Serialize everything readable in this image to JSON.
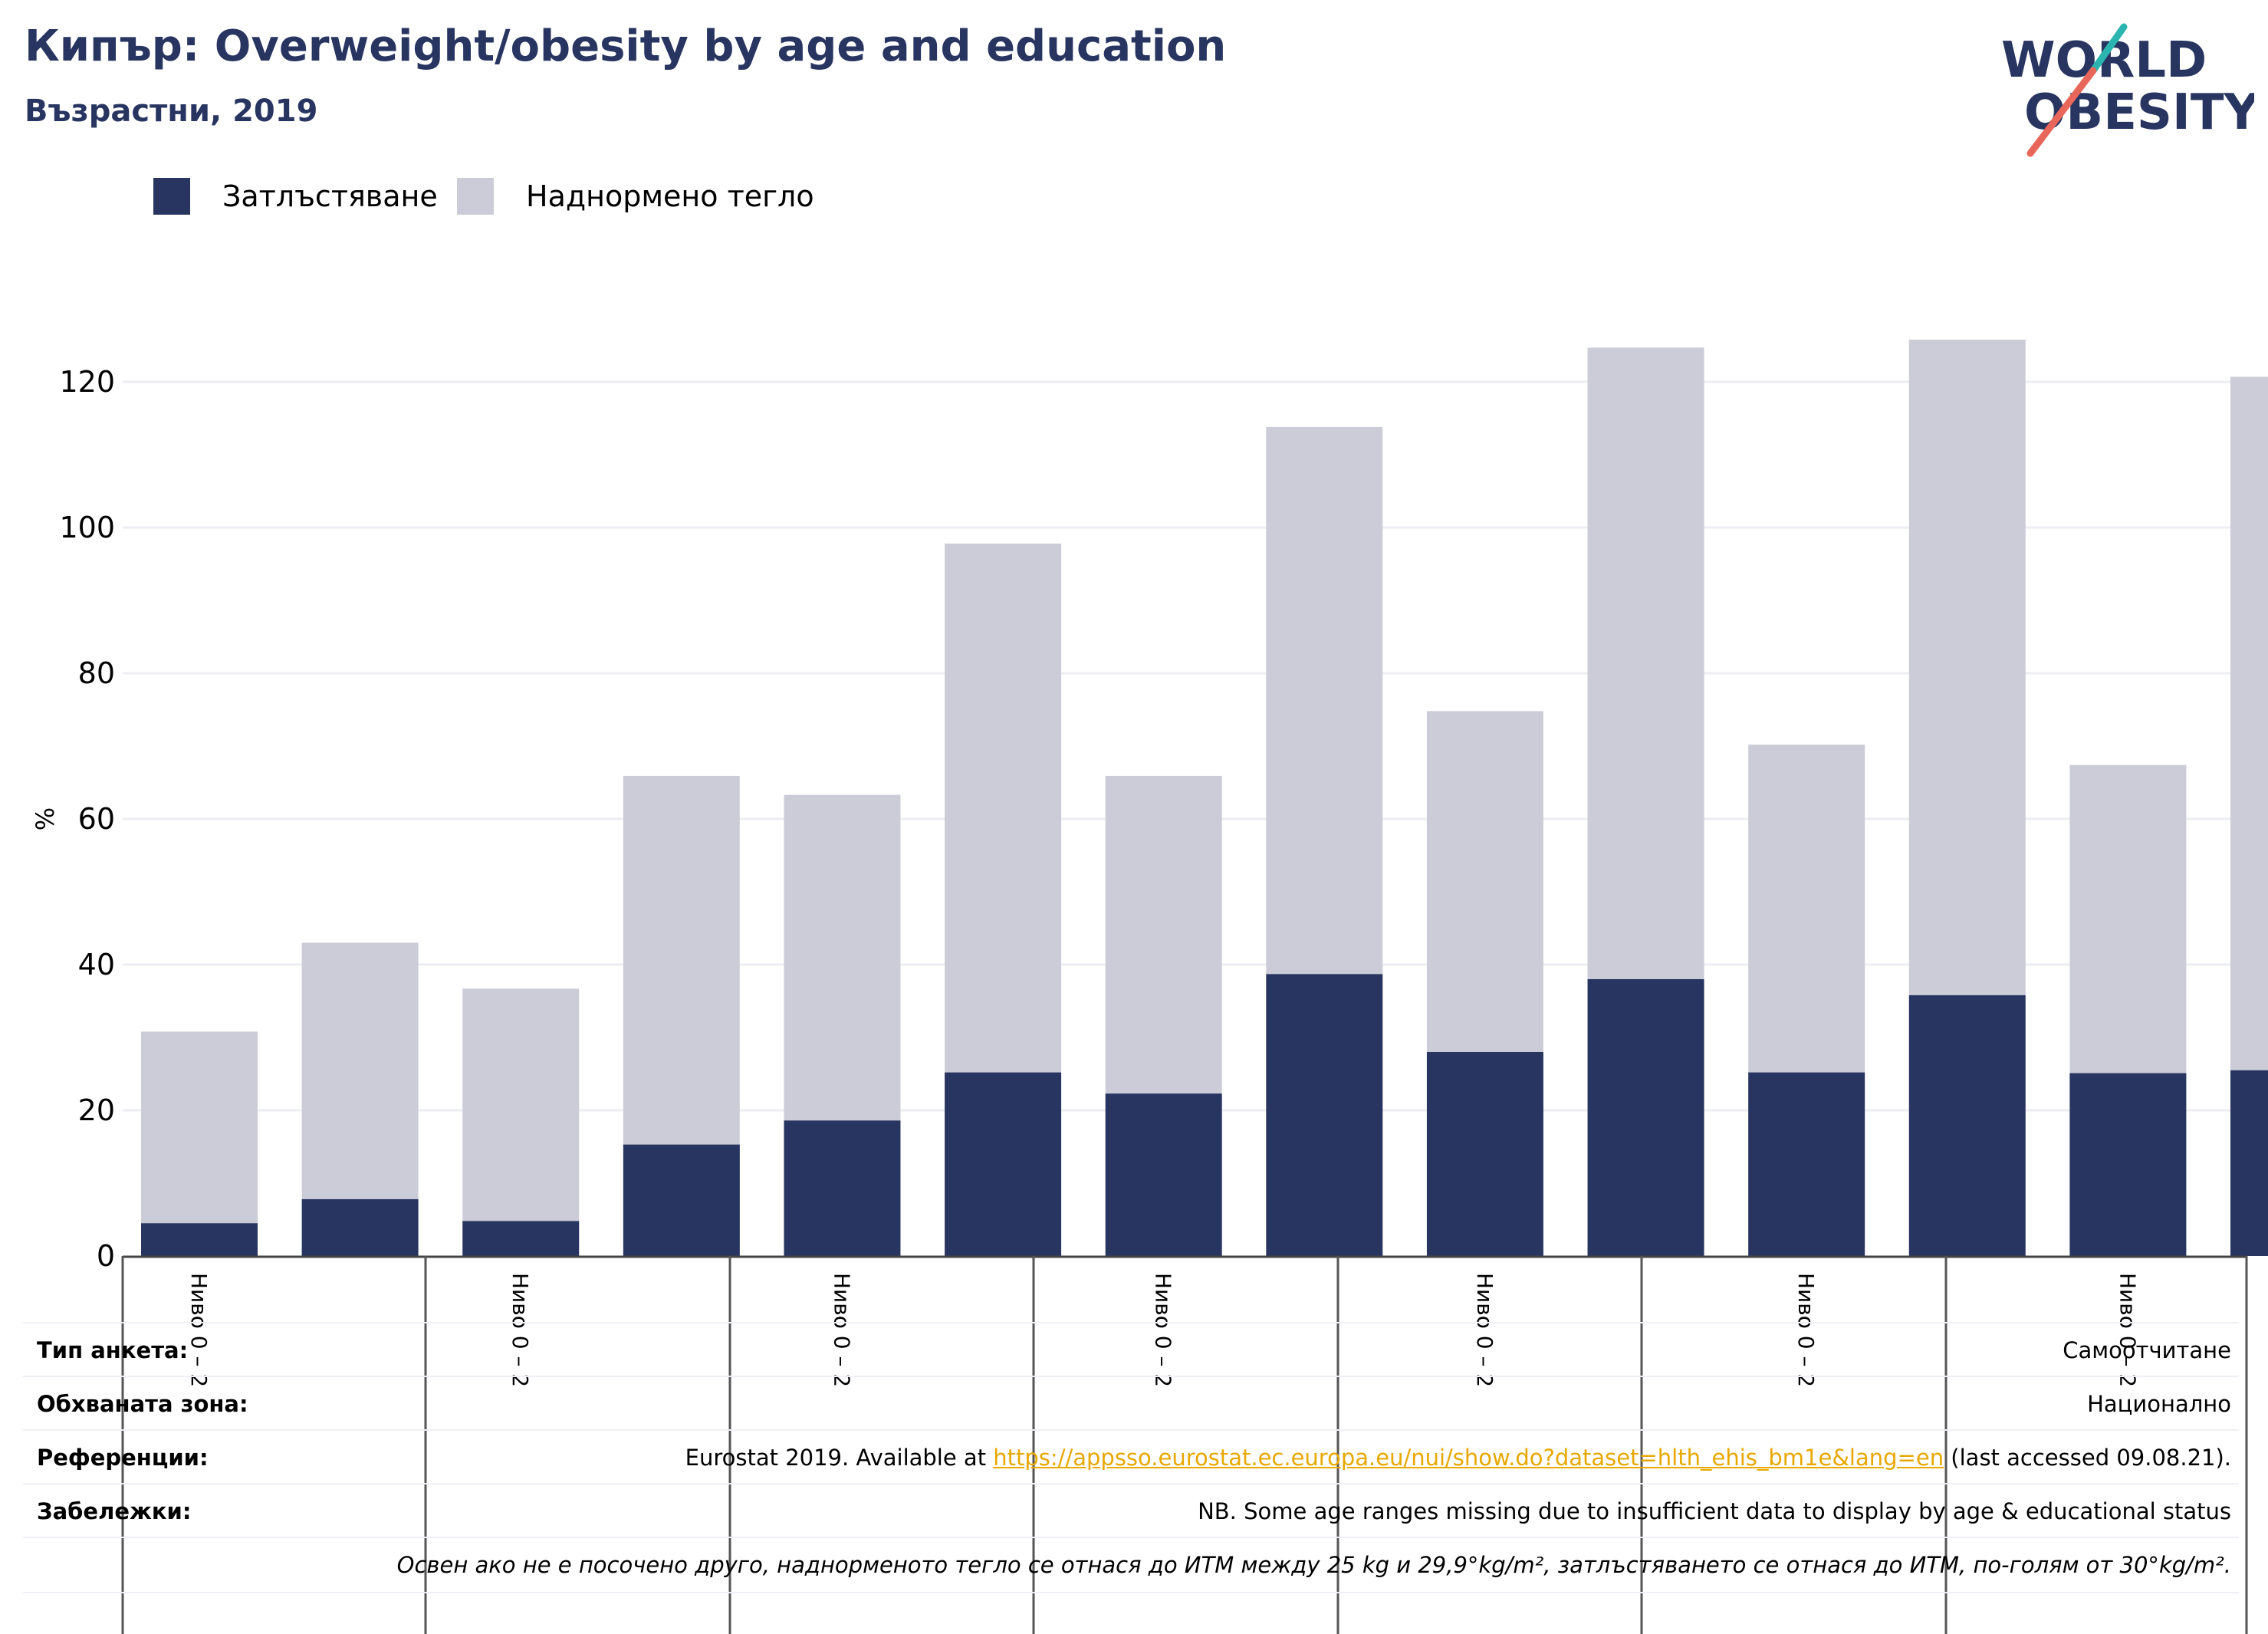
{
  "header": {
    "title": "Кипър: Overweight/obesity by age and education",
    "subtitle": "Възрастни, 2019"
  },
  "logo": {
    "line1": "WORLD",
    "line2": "OBESITY",
    "icon": "world-obesity-logo"
  },
  "colors": {
    "obesity": "#283561",
    "overweight": "#cbccd8",
    "title": "#283561",
    "link": "#e8a800",
    "logo_teal": "#2bb5b0",
    "logo_red": "#e8675a"
  },
  "legend": {
    "obesity": "Затлъстяване",
    "overweight": "Наднормено тегло"
  },
  "chart_data": {
    "type": "bar",
    "stacked": true,
    "ylabel": "%",
    "ylim": [
      0,
      130
    ],
    "yticks": [
      0,
      20,
      40,
      60,
      80,
      100,
      120
    ],
    "grid": true,
    "legend_position": "top-left",
    "category_labels": [
      "Ниво 0 – 2",
      "",
      "Ниво 0 – 2",
      "",
      "Ниво 0 – 2",
      "",
      "Ниво 0 – 2",
      "",
      "Ниво 0 – 2",
      "",
      "Ниво 0 – 2",
      "",
      "Ниво 0 – 2",
      ""
    ],
    "series": [
      {
        "name": "Затлъстяване",
        "values": [
          4.5,
          7.8,
          4.8,
          15.3,
          18.6,
          25.2,
          22.3,
          38.7,
          28.0,
          38.0,
          25.2,
          35.8,
          25.1,
          25.5
        ]
      },
      {
        "name": "Наднормено тегло",
        "values": [
          26.3,
          35.2,
          31.9,
          50.6,
          44.7,
          72.6,
          43.6,
          75.1,
          46.8,
          86.7,
          45.0,
          90.0,
          42.3,
          95.2
        ]
      }
    ]
  },
  "meta": {
    "survey_type": {
      "label": "Тип анкета:",
      "value": "Самоотчитане"
    },
    "coverage": {
      "label": "Обхваната зона:",
      "value": "Национално"
    },
    "references": {
      "label": "Референции:",
      "prefix": "Eurostat 2019. Available at ",
      "link": "https://appsso.eurostat.ec.europa.eu/nui/show.do?dataset=hlth_ehis_bm1e&lang=en",
      "suffix": " (last accessed 09.08.21)."
    },
    "notes": {
      "label": "Забележки:",
      "value": "NB. Some age ranges missing due to insufficient data to display by age & educational status"
    },
    "definition": "Освен ако не е посочено друго, наднорменото тегло се отнася до ИТМ между 25 kg и 29,9°kg/m², затлъстяването се отнася до ИТМ, по-голям от 30°kg/m²."
  }
}
